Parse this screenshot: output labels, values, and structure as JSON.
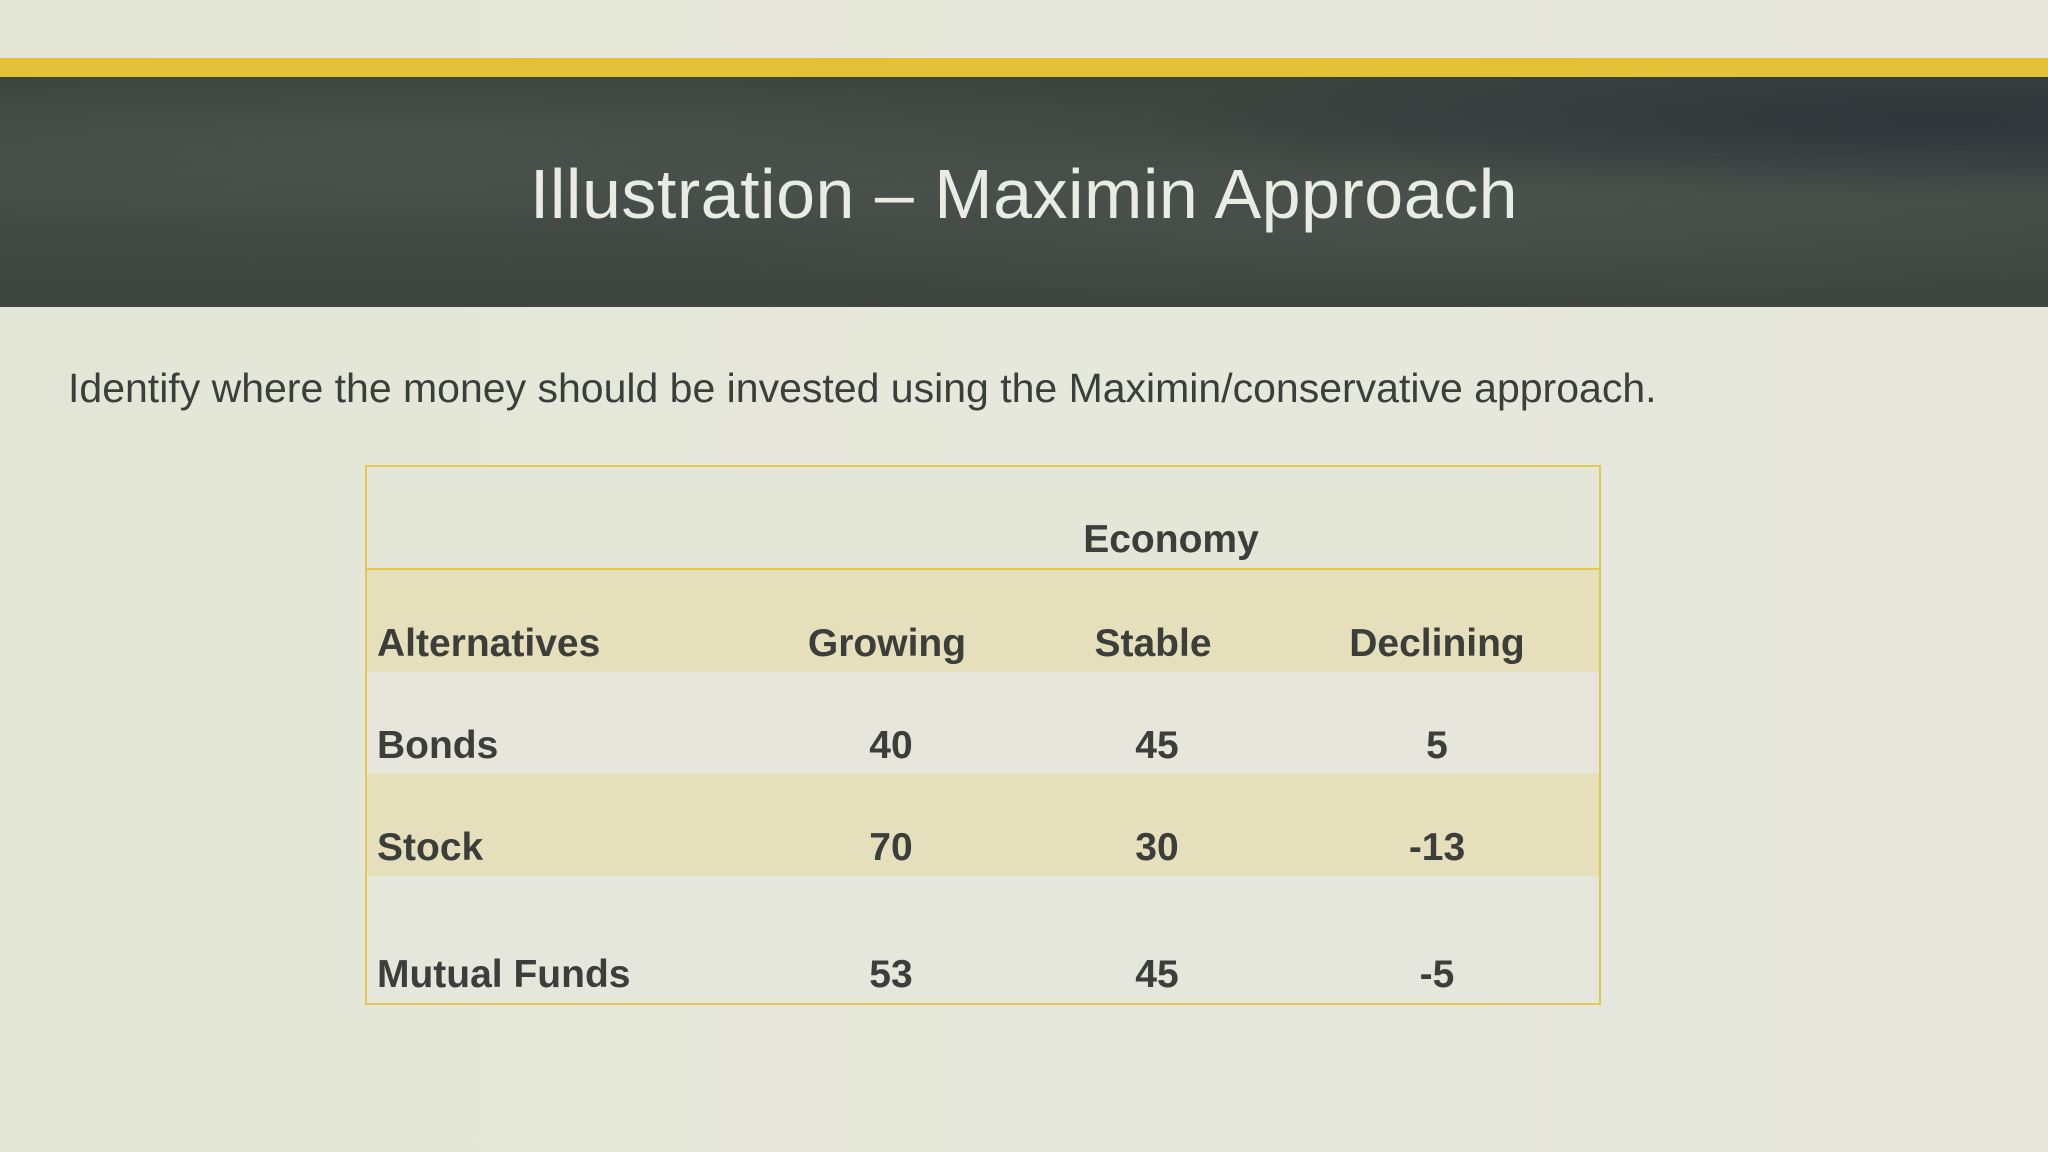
{
  "slide": {
    "title": "Illustration – Maximin Approach",
    "instruction": "Identify where the money should be invested using the Maximin/conservative approach."
  },
  "table": {
    "group_header": "Economy",
    "columns": [
      "Alternatives",
      "Growing",
      "Stable",
      "Declining"
    ],
    "rows": [
      {
        "alternative": "Bonds",
        "growing": "40",
        "stable": "45",
        "declining": "5"
      },
      {
        "alternative": "Stock",
        "growing": "70",
        "stable": "30",
        "declining": "-13"
      },
      {
        "alternative": "Mutual Funds",
        "growing": "53",
        "stable": "45",
        "declining": "-5"
      }
    ]
  },
  "colors": {
    "accent_bar": "#e3c238",
    "header_band": "#414843",
    "table_border": "#e1c84e",
    "banded_row": "#e6dfbb"
  }
}
